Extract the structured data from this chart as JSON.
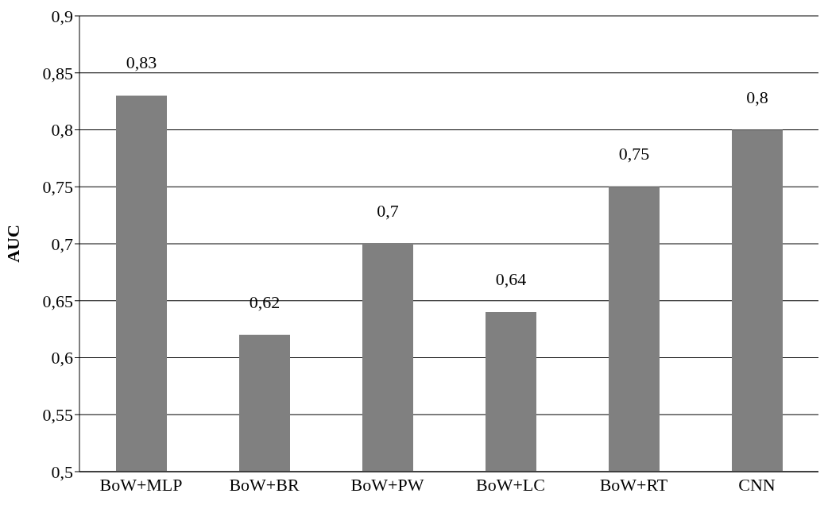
{
  "chart_data": {
    "type": "bar",
    "ylabel": "AUC",
    "categories": [
      "BoW+MLP",
      "BoW+BR",
      "BoW+PW",
      "BoW+LC",
      "BoW+RT",
      "CNN"
    ],
    "values": [
      0.83,
      0.62,
      0.7,
      0.64,
      0.75,
      0.8
    ],
    "value_labels": [
      "0,83",
      "0,62",
      "0,7",
      "0,64",
      "0,75",
      "0,8"
    ],
    "color": "#808080",
    "ylim": [
      0.5,
      0.9
    ],
    "yticks": [
      {
        "value": 0.5,
        "label": "0,5"
      },
      {
        "value": 0.55,
        "label": "0,55"
      },
      {
        "value": 0.6,
        "label": "0,6"
      },
      {
        "value": 0.65,
        "label": "0,65"
      },
      {
        "value": 0.7,
        "label": "0,7"
      },
      {
        "value": 0.75,
        "label": "0,75"
      },
      {
        "value": 0.8,
        "label": "0,8"
      },
      {
        "value": 0.85,
        "label": "0,85"
      },
      {
        "value": 0.9,
        "label": "0,9"
      }
    ],
    "grid": "y"
  }
}
